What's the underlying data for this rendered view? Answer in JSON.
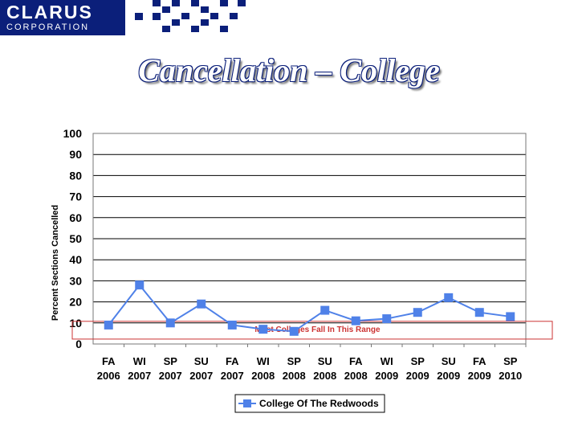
{
  "brand": {
    "name": "CLARUS",
    "sub": "CORPORATION",
    "color": "#0b1f7a"
  },
  "slide": {
    "title": "Cancellation – College"
  },
  "chart_data": {
    "type": "line",
    "title": "Cancellation – College",
    "xlabel": "",
    "ylabel": "Percent Sections Cancelled",
    "ylim": [
      0,
      100
    ],
    "yticks": [
      0,
      10,
      20,
      30,
      40,
      50,
      60,
      70,
      80,
      90,
      100
    ],
    "grid": true,
    "categories": [
      [
        "FA",
        "2006"
      ],
      [
        "WI",
        "2007"
      ],
      [
        "SP",
        "2007"
      ],
      [
        "SU",
        "2007"
      ],
      [
        "FA",
        "2007"
      ],
      [
        "WI",
        "2008"
      ],
      [
        "SP",
        "2008"
      ],
      [
        "SU",
        "2008"
      ],
      [
        "FA",
        "2008"
      ],
      [
        "WI",
        "2009"
      ],
      [
        "SP",
        "2009"
      ],
      [
        "SU",
        "2009"
      ],
      [
        "FA",
        "2009"
      ],
      [
        "SP",
        "2010"
      ]
    ],
    "series": [
      {
        "name": "College Of The Redwoods",
        "color": "#4f81e8",
        "values": [
          9,
          28,
          10,
          19,
          9,
          7,
          6,
          16,
          11,
          12,
          15,
          22,
          15,
          13
        ]
      }
    ],
    "annotation": {
      "text": "Most Colleges Fall In This Range",
      "range": [
        5,
        10
      ],
      "color": "#cc3333"
    },
    "legend": "bottom"
  }
}
